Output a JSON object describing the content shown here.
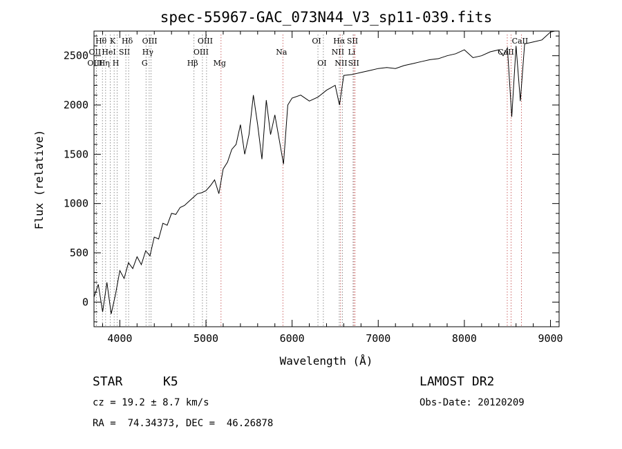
{
  "chart_data": {
    "type": "line",
    "title": "spec-55967-GAC_073N44_V3_sp11-039.fits",
    "xlabel": "Wavelength (Å)",
    "ylabel": "Flux (relative)",
    "xlim": [
      3700,
      9100
    ],
    "ylim": [
      -250,
      2750
    ],
    "xticks": [
      4000,
      5000,
      6000,
      7000,
      8000,
      9000
    ],
    "xtick_labels": [
      "4000",
      "5000",
      "6000",
      "7000",
      "8000",
      "9000"
    ],
    "yticks": [
      0,
      500,
      1000,
      1500,
      2000,
      2500
    ],
    "ytick_labels": [
      "0",
      "500",
      "1000",
      "1500",
      "2000",
      "2500"
    ],
    "grid": false,
    "series": [
      {
        "x": [
          3700,
          3750,
          3800,
          3850,
          3900,
          3950,
          4000,
          4050,
          4100,
          4150,
          4200,
          4250,
          4300,
          4350,
          4400,
          4450,
          4500,
          4550,
          4600,
          4650,
          4700,
          4750,
          4800,
          4850,
          4900,
          4950,
          5000,
          5050,
          5100,
          5150,
          5200,
          5250,
          5300,
          5350,
          5400,
          5450,
          5500,
          5550,
          5600,
          5650,
          5700,
          5750,
          5800,
          5850,
          5900,
          5950,
          6000,
          6100,
          6200,
          6300,
          6400,
          6500,
          6550,
          6600,
          6700,
          6800,
          6900,
          7000,
          7100,
          7200,
          7300,
          7400,
          7500,
          7600,
          7700,
          7800,
          7900,
          8000,
          8100,
          8200,
          8300,
          8400,
          8450,
          8500,
          8550,
          8600,
          8650,
          8700,
          8800,
          8900,
          9000,
          9050
        ],
        "y": [
          50,
          180,
          -100,
          200,
          -120,
          80,
          320,
          240,
          400,
          340,
          460,
          380,
          520,
          470,
          660,
          640,
          800,
          780,
          900,
          890,
          960,
          980,
          1020,
          1060,
          1100,
          1110,
          1130,
          1180,
          1240,
          1100,
          1350,
          1420,
          1550,
          1600,
          1800,
          1500,
          1700,
          2100,
          1800,
          1450,
          2050,
          1700,
          1900,
          1650,
          1400,
          2000,
          2070,
          2100,
          2040,
          2080,
          2150,
          2200,
          2000,
          2300,
          2310,
          2330,
          2350,
          2370,
          2380,
          2370,
          2400,
          2420,
          2440,
          2460,
          2470,
          2500,
          2520,
          2560,
          2480,
          2500,
          2540,
          2560,
          2500,
          2580,
          1880,
          2600,
          2040,
          2620,
          2640,
          2660,
          2740,
          2760
        ]
      }
    ],
    "lines": [
      {
        "wl": 3798,
        "label": "Hθ",
        "row": 0,
        "color": "#707070"
      },
      {
        "wl": 3727,
        "label": "OII",
        "row": 1,
        "color": "#707070"
      },
      {
        "wl": 3727,
        "label": "OIII",
        "row": 2,
        "color": "#707070"
      },
      {
        "wl": 3835,
        "label": "Hη",
        "row": 2,
        "color": "#707070"
      },
      {
        "wl": 3889,
        "label": "HeI",
        "row": 1,
        "color": "#707070"
      },
      {
        "wl": 3934,
        "label": "K",
        "row": 0,
        "color": "#707070"
      },
      {
        "wl": 3969,
        "label": "H",
        "row": 2,
        "color": "#707070"
      },
      {
        "wl": 4070,
        "label": "SII",
        "row": 1,
        "color": "#707070"
      },
      {
        "wl": 4102,
        "label": "Hδ",
        "row": 0,
        "color": "#707070"
      },
      {
        "wl": 4304,
        "label": "G",
        "row": 2,
        "color": "#707070"
      },
      {
        "wl": 4341,
        "label": "Hγ",
        "row": 1,
        "color": "#707070"
      },
      {
        "wl": 4363,
        "label": "OIII",
        "row": 0,
        "color": "#707070"
      },
      {
        "wl": 4861,
        "label": "Hβ",
        "row": 2,
        "color": "#707070"
      },
      {
        "wl": 4959,
        "label": "OIII",
        "row": 1,
        "color": "#707070"
      },
      {
        "wl": 5007,
        "label": "OIII",
        "row": 0,
        "color": "#707070"
      },
      {
        "wl": 5175,
        "label": "Mg",
        "row": 2,
        "color": "#c04040"
      },
      {
        "wl": 5893,
        "label": "Na",
        "row": 1,
        "color": "#c04040"
      },
      {
        "wl": 6300,
        "label": "OI",
        "row": 0,
        "color": "#707070"
      },
      {
        "wl": 6363,
        "label": "OI",
        "row": 2,
        "color": "#707070"
      },
      {
        "wl": 6548,
        "label": "NII",
        "row": 1,
        "color": "#707070"
      },
      {
        "wl": 6563,
        "label": "Hα",
        "row": 0,
        "color": "#c04040"
      },
      {
        "wl": 6584,
        "label": "NII",
        "row": 2,
        "color": "#707070"
      },
      {
        "wl": 6708,
        "label": "Li",
        "row": 1,
        "color": "#707070"
      },
      {
        "wl": 6717,
        "label": "SII",
        "row": 0,
        "color": "#c04040"
      },
      {
        "wl": 6731,
        "label": "SII",
        "row": 2,
        "color": "#c04040"
      },
      {
        "wl": 8498,
        "label": "CaII",
        "row": 1,
        "color": "#c04040"
      },
      {
        "wl": 8542,
        "label": "",
        "row": 1,
        "color": "#c04040"
      },
      {
        "wl": 8662,
        "label": "CaII",
        "row": 0,
        "color": "#c04040"
      }
    ]
  },
  "info": {
    "class": "STAR",
    "subclass": "K5",
    "survey": "LAMOST DR2",
    "cz": "cz = 19.2 ± 8.7 km/s",
    "obs_date": "Obs-Date: 20120209",
    "coords": "RA =  74.34373, DEC =  46.26878"
  }
}
